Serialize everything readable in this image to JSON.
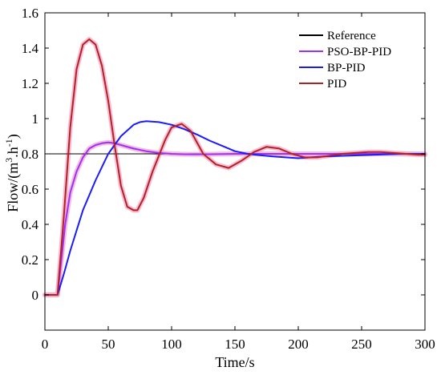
{
  "chart_data": {
    "type": "line",
    "xlabel": "Time/s",
    "ylabel_parts": {
      "prefix": "Flow/(m",
      "sup1": "3",
      "mid": ".h",
      "sup2": "-1",
      "suffix": ")"
    },
    "xlim": [
      0,
      300
    ],
    "ylim": [
      -0.2,
      1.6
    ],
    "xticks": [
      0,
      50,
      100,
      150,
      200,
      250,
      300
    ],
    "yticks": [
      0,
      0.2,
      0.4,
      0.6,
      0.8,
      1,
      1.2,
      1.4,
      1.6
    ],
    "xtick_labels": [
      "0",
      "50",
      "100",
      "150",
      "200",
      "250",
      "300"
    ],
    "ytick_labels": [
      "0",
      "0.2",
      "0.4",
      "0.6",
      "0.8",
      "1",
      "1.2",
      "1.4",
      "1.6"
    ],
    "grid": false,
    "legend_position": "top-right",
    "series": [
      {
        "name": "Reference",
        "color": "#000000",
        "glow": false,
        "x": [
          0,
          300
        ],
        "y": [
          0.8,
          0.8
        ]
      },
      {
        "name": "PSO-BP-PID",
        "color": "#9b30ff",
        "glow": true,
        "x": [
          0,
          10,
          13,
          16,
          20,
          25,
          30,
          35,
          40,
          45,
          50,
          55,
          60,
          70,
          80,
          90,
          100,
          110,
          120,
          130,
          150,
          180,
          210,
          240,
          270,
          300
        ],
        "y": [
          0,
          0,
          0.2,
          0.4,
          0.58,
          0.7,
          0.78,
          0.83,
          0.85,
          0.86,
          0.865,
          0.86,
          0.85,
          0.83,
          0.815,
          0.805,
          0.8,
          0.798,
          0.797,
          0.798,
          0.8,
          0.8,
          0.8,
          0.8,
          0.8,
          0.8
        ]
      },
      {
        "name": "BP-PID",
        "color": "#1a1aff",
        "glow": false,
        "x": [
          0,
          10,
          15,
          20,
          30,
          40,
          50,
          60,
          70,
          75,
          80,
          90,
          100,
          110,
          120,
          130,
          140,
          150,
          160,
          170,
          180,
          190,
          200,
          210,
          220,
          240,
          260,
          280,
          300
        ],
        "y": [
          0,
          0,
          0.12,
          0.25,
          0.48,
          0.65,
          0.8,
          0.9,
          0.965,
          0.98,
          0.985,
          0.98,
          0.965,
          0.94,
          0.91,
          0.875,
          0.845,
          0.815,
          0.8,
          0.792,
          0.785,
          0.78,
          0.775,
          0.78,
          0.785,
          0.79,
          0.795,
          0.8,
          0.8
        ]
      },
      {
        "name": "PID",
        "color": "#b22222",
        "glow": true,
        "x": [
          0,
          10,
          15,
          20,
          25,
          30,
          35,
          40,
          45,
          50,
          55,
          60,
          65,
          70,
          73,
          78,
          85,
          95,
          100,
          108,
          115,
          125,
          135,
          145,
          155,
          165,
          175,
          185,
          195,
          205,
          215,
          225,
          235,
          245,
          255,
          265,
          275,
          285,
          295,
          300
        ],
        "y": [
          0,
          0,
          0.45,
          0.95,
          1.28,
          1.42,
          1.45,
          1.42,
          1.3,
          1.1,
          0.85,
          0.62,
          0.5,
          0.48,
          0.48,
          0.55,
          0.7,
          0.88,
          0.95,
          0.97,
          0.93,
          0.8,
          0.74,
          0.72,
          0.76,
          0.81,
          0.84,
          0.83,
          0.8,
          0.78,
          0.78,
          0.79,
          0.8,
          0.805,
          0.81,
          0.81,
          0.805,
          0.8,
          0.795,
          0.795
        ]
      }
    ]
  }
}
